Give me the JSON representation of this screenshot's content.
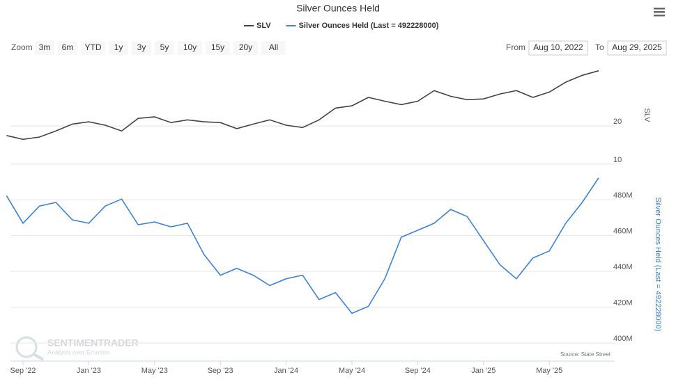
{
  "chart_data": [
    {
      "type": "line",
      "title": "Silver Ounces Held",
      "x": [
        "2022-08",
        "2022-09",
        "2022-10",
        "2022-11",
        "2022-12",
        "2023-01",
        "2023-02",
        "2023-03",
        "2023-04",
        "2023-05",
        "2023-06",
        "2023-07",
        "2023-08",
        "2023-09",
        "2023-10",
        "2023-11",
        "2023-12",
        "2024-01",
        "2024-02",
        "2024-03",
        "2024-04",
        "2024-05",
        "2024-06",
        "2024-07",
        "2024-08",
        "2024-09",
        "2024-10",
        "2024-11",
        "2024-12",
        "2025-01",
        "2025-02",
        "2025-03",
        "2025-04",
        "2025-05",
        "2025-06",
        "2025-07",
        "2025-08"
      ],
      "xlim": [
        "2022-08",
        "2025-09"
      ],
      "series": [
        {
          "name": "SLV",
          "color": "#444444",
          "axis_title": "SLV",
          "values": [
            17.5,
            16.5,
            17.1,
            18.7,
            20.5,
            21.1,
            20.2,
            18.7,
            22.0,
            22.4,
            20.9,
            21.6,
            21.1,
            20.9,
            19.3,
            20.5,
            21.6,
            20.2,
            19.6,
            21.6,
            24.7,
            25.3,
            27.5,
            26.5,
            25.6,
            26.5,
            29.3,
            27.8,
            26.9,
            27.1,
            28.4,
            29.3,
            27.5,
            28.9,
            31.5,
            33.3,
            34.5
          ]
        }
      ],
      "ylim": [
        8.7,
        37
      ],
      "yticks": [
        10,
        20
      ]
    },
    {
      "type": "line",
      "x": [
        "2022-08",
        "2022-09",
        "2022-10",
        "2022-11",
        "2022-12",
        "2023-01",
        "2023-02",
        "2023-03",
        "2023-04",
        "2023-05",
        "2023-06",
        "2023-07",
        "2023-08",
        "2023-09",
        "2023-10",
        "2023-11",
        "2023-12",
        "2024-01",
        "2024-02",
        "2024-03",
        "2024-04",
        "2024-05",
        "2024-06",
        "2024-07",
        "2024-08",
        "2024-09",
        "2024-10",
        "2024-11",
        "2024-12",
        "2025-01",
        "2025-02",
        "2025-03",
        "2025-04",
        "2025-05",
        "2025-06",
        "2025-07",
        "2025-08"
      ],
      "xlim": [
        "2022-08",
        "2025-09"
      ],
      "series": [
        {
          "name": "Silver Ounces Held (Last = 492228000)",
          "color": "#3b82d6",
          "values": [
            482300000,
            466900000,
            476500000,
            478500000,
            468800000,
            466900000,
            476500000,
            480400000,
            466100000,
            467600000,
            464900000,
            466900000,
            449500000,
            437900000,
            441700000,
            437900000,
            432100000,
            435900000,
            437900000,
            424300000,
            428200000,
            416600000,
            420500000,
            435900000,
            459100000,
            463000000,
            466900000,
            474600000,
            470700000,
            457200000,
            443700000,
            435900000,
            447500000,
            451400000,
            466900000,
            478500000,
            492228000
          ]
        }
      ],
      "ylim": [
        395400000,
        492500000
      ],
      "yticks": [
        {
          "value": 400000000,
          "label": "400M"
        },
        {
          "value": 420000000,
          "label": "420M"
        },
        {
          "value": 440000000,
          "label": "440M"
        },
        {
          "value": 460000000,
          "label": "460M"
        },
        {
          "value": 480000000,
          "label": "480M"
        }
      ],
      "xticks": [
        {
          "value": "2022-09",
          "label": "Sep '22"
        },
        {
          "value": "2023-01",
          "label": "Jan '23"
        },
        {
          "value": "2023-05",
          "label": "May '23"
        },
        {
          "value": "2023-09",
          "label": "Sep '23"
        },
        {
          "value": "2024-01",
          "label": "Jan '24"
        },
        {
          "value": "2024-05",
          "label": "May '24"
        },
        {
          "value": "2024-09",
          "label": "Sep '24"
        },
        {
          "value": "2025-01",
          "label": "Jan '25"
        },
        {
          "value": "2025-05",
          "label": "May '25"
        }
      ]
    }
  ],
  "ui": {
    "zoom_label": "Zoom",
    "zoom_buttons": [
      "3m",
      "6m",
      "YTD",
      "1y",
      "3y",
      "5y",
      "10y",
      "15y",
      "20y",
      "All"
    ],
    "from_label": "From",
    "from_value": "Aug 10, 2022",
    "to_label": "To",
    "to_value": "Aug 29, 2025",
    "source": "Source: State Street",
    "brand": "SENTIMENTRADER",
    "tagline": "Analysis over Emotion"
  }
}
